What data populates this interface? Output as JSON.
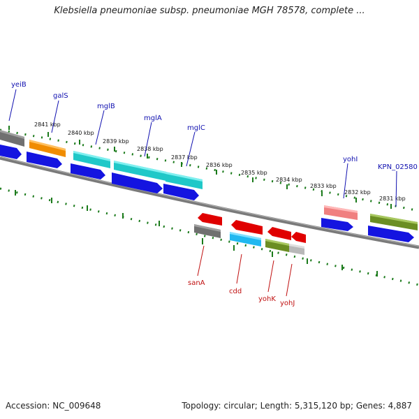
{
  "title": "Klebsiella pneumoniae subsp. pneumoniae MGH 78578, complete ...",
  "footer": {
    "accession": "Accession: NC_009648",
    "stats": "Topology: circular; Length: 5,315,120 bp; Genes: 4,887"
  },
  "colors": {
    "backbone": "#7a7a7a",
    "tick": "#1a7a1a",
    "cds": "#1414e0",
    "label_top": "#1010b0",
    "label_bottom": "#c01010"
  },
  "scale_labels": [
    "2841 kbp",
    "2840 kbp",
    "2839 kbp",
    "2838 kbp",
    "2837 kbp",
    "2836 kbp",
    "2835 kbp",
    "2834 kbp",
    "2833 kbp",
    "2832 kbp",
    "2831 kbp"
  ],
  "top_genes": [
    {
      "name": "yeiB",
      "color": "#707070"
    },
    {
      "name": "galS",
      "color": "#f08c00"
    },
    {
      "name": "mglB",
      "color": "#20c8c8"
    },
    {
      "name": "mglA",
      "color": "#20c8c8"
    },
    {
      "name": "mglC",
      "color": "#20c8c8"
    },
    {
      "name": "yohI",
      "color": "#f08080"
    },
    {
      "name": "KPN_02580",
      "color": "#6b8e23"
    }
  ],
  "bottom_genes": [
    {
      "name": "sanA",
      "color": "#707070"
    },
    {
      "name": "cdd",
      "color": "#20b8f0"
    },
    {
      "name": "yohK",
      "color": "#6b8e23"
    },
    {
      "name": "yohJ",
      "color": "#b8b8b8"
    }
  ]
}
